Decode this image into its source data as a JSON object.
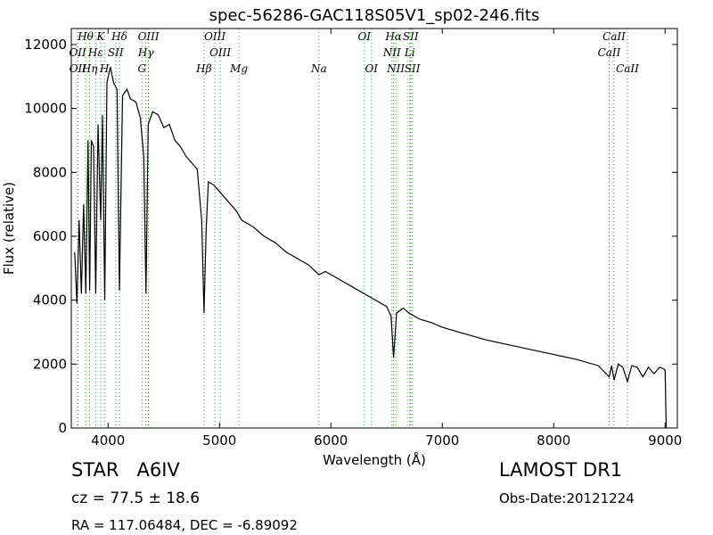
{
  "chart_data": {
    "type": "line",
    "title": "spec-56286-GAC118S05V1_sp02-246.fits",
    "x_label": "Wavelength (Å)",
    "y_label": "Flux (relative)",
    "xlim": [
      3670,
      9110
    ],
    "ylim": [
      0,
      12500
    ],
    "xticks": [
      4000,
      5000,
      6000,
      7000,
      8000,
      9000
    ],
    "yticks": [
      0,
      2000,
      4000,
      6000,
      8000,
      10000,
      12000
    ],
    "color": "#000000",
    "line_color": "#2ca02c",
    "x": [
      3700,
      3720,
      3740,
      3760,
      3780,
      3800,
      3820,
      3835,
      3850,
      3870,
      3889,
      3910,
      3934,
      3950,
      3970,
      3990,
      4020,
      4050,
      4080,
      4102,
      4130,
      4170,
      4200,
      4250,
      4290,
      4320,
      4340,
      4360,
      4400,
      4450,
      4500,
      4550,
      4600,
      4650,
      4700,
      4750,
      4800,
      4840,
      4861,
      4880,
      4900,
      4950,
      5000,
      5050,
      5100,
      5150,
      5200,
      5250,
      5300,
      5400,
      5500,
      5600,
      5700,
      5800,
      5893,
      5950,
      6000,
      6100,
      6200,
      6300,
      6400,
      6500,
      6540,
      6563,
      6590,
      6650,
      6700,
      6800,
      6900,
      7000,
      7200,
      7400,
      7600,
      7800,
      8000,
      8200,
      8400,
      8498,
      8520,
      8542,
      8580,
      8620,
      8662,
      8700,
      8750,
      8800,
      8850,
      8900,
      8950,
      8990,
      9000,
      9010
    ],
    "values": [
      5500,
      3900,
      6500,
      4200,
      7000,
      4200,
      9000,
      4300,
      9000,
      8800,
      4200,
      9500,
      6500,
      9800,
      4000,
      10800,
      11300,
      10800,
      10600,
      4300,
      10400,
      10600,
      10300,
      10200,
      9700,
      8500,
      4200,
      9500,
      9900,
      9800,
      9400,
      9500,
      9000,
      8800,
      8500,
      8300,
      8100,
      6500,
      3600,
      6200,
      7700,
      7600,
      7400,
      7200,
      7000,
      6800,
      6500,
      6400,
      6300,
      6000,
      5800,
      5500,
      5300,
      5100,
      4800,
      4900,
      4800,
      4600,
      4400,
      4200,
      4000,
      3800,
      3500,
      2200,
      3600,
      3750,
      3600,
      3400,
      3300,
      3150,
      2950,
      2750,
      2600,
      2450,
      2300,
      2150,
      1950,
      1600,
      1950,
      1500,
      2000,
      1900,
      1450,
      1950,
      1900,
      1600,
      1900,
      1700,
      1900,
      1850,
      1800,
      0
    ],
    "spectral_lines": [
      [
        {
          "wavelength": 3798,
          "label": "Hθ"
        },
        {
          "wavelength": 3934,
          "label": "K"
        },
        {
          "wavelength": 4102,
          "label": "Hδ"
        },
        {
          "wavelength": 4363,
          "label": "OIII"
        },
        {
          "wavelength": 4959,
          "label": "OIII"
        },
        {
          "wavelength": 6300,
          "label": "OI"
        },
        {
          "wavelength": 6563,
          "label": "Hα"
        },
        {
          "wavelength": 6716,
          "label": "SII"
        },
        {
          "wavelength": 8542,
          "label": "CaII"
        }
      ],
      [
        {
          "wavelength": 3727,
          "label": "OII"
        },
        {
          "wavelength": 3889,
          "label": "Hε"
        },
        {
          "wavelength": 4068,
          "label": "SII"
        },
        {
          "wavelength": 4340,
          "label": "Hγ"
        },
        {
          "wavelength": 5007,
          "label": "OIII"
        },
        {
          "wavelength": 6548,
          "label": "NII"
        },
        {
          "wavelength": 6708,
          "label": "Li"
        },
        {
          "wavelength": 8498,
          "label": "CaII"
        }
      ],
      [
        {
          "wavelength": 3729,
          "label": "OII"
        },
        {
          "wavelength": 3835,
          "label": "Hη"
        },
        {
          "wavelength": 3968,
          "label": "H"
        },
        {
          "wavelength": 4304,
          "label": "G"
        },
        {
          "wavelength": 4861,
          "label": "Hβ"
        },
        {
          "wavelength": 5175,
          "label": "Mg"
        },
        {
          "wavelength": 5893,
          "label": "Na"
        },
        {
          "wavelength": 6364,
          "label": "OI"
        },
        {
          "wavelength": 6583,
          "label": "NII"
        },
        {
          "wavelength": 6731,
          "label": "SII"
        },
        {
          "wavelength": 8662,
          "label": "CaII"
        }
      ]
    ],
    "annotations": {
      "object": "STAR   A6IV",
      "survey": "LAMOST DR1",
      "cz": "cz = 77.5 ± 18.6",
      "obs_date": "Obs-Date:20121224",
      "coords": "RA = 117.06484, DEC = -6.89092"
    }
  }
}
